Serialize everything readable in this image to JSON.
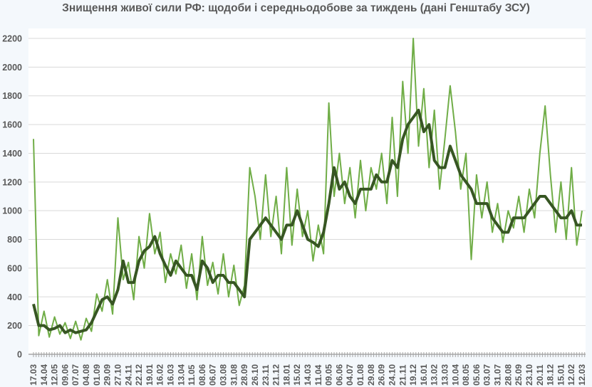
{
  "chart_data": {
    "type": "line",
    "title": "Знищення живої сили РФ: щодоби і середньодобове за тиждень (дані Генштабу ЗСУ)",
    "xlabel": "",
    "ylabel": "",
    "ylim": [
      0,
      2200
    ],
    "yticks": [
      0,
      200,
      400,
      600,
      800,
      1000,
      1200,
      1400,
      1600,
      1800,
      2000,
      2200
    ],
    "grid": true,
    "legend": "none",
    "x_tick_labels": [
      "17.03",
      "14.04",
      "12.05",
      "09.06",
      "07.07",
      "04.08",
      "01.09",
      "29.09",
      "27.10",
      "24.11",
      "22.12",
      "19.01",
      "16.02",
      "16.03",
      "13.04",
      "11.05",
      "08.06",
      "06.07",
      "03.08",
      "31.08",
      "28.09",
      "26.10",
      "23.11",
      "21.12",
      "18.01",
      "15.02",
      "14.03",
      "11.04",
      "09.05",
      "06.06",
      "04.07",
      "01.08",
      "29.08",
      "26.09",
      "24.10",
      "21.11",
      "19.12",
      "16.01",
      "13.02",
      "13.03",
      "10.04",
      "08.05",
      "05.06",
      "03.07",
      "31.07",
      "28.08",
      "25.09",
      "23.10",
      "20.11",
      "18.12",
      "15.01",
      "12.02",
      "12.03"
    ],
    "sampling": "values at each x tick and midway between ticks",
    "series": [
      {
        "key": "daily",
        "color": "#70ad47",
        "values": [
          1500,
          130,
          300,
          120,
          260,
          140,
          220,
          110,
          230,
          100,
          250,
          160,
          420,
          300,
          520,
          280,
          950,
          520,
          640,
          380,
          820,
          600,
          980,
          700,
          850,
          500,
          700,
          560,
          760,
          460,
          700,
          380,
          820,
          480,
          640,
          420,
          700,
          400,
          620,
          340,
          480,
          1300,
          1100,
          800,
          1250,
          820,
          1100,
          700,
          1300,
          760,
          1150,
          820,
          1000,
          650,
          900,
          700,
          1750,
          1100,
          1400,
          1050,
          1300,
          950,
          1350,
          1000,
          1300,
          1150,
          1400,
          1050,
          1650,
          1100,
          1900,
          1400,
          2200,
          1450,
          1850,
          1300,
          1700,
          1150,
          1500,
          1870,
          1550,
          1150,
          1400,
          660,
          1250,
          950,
          1200,
          850,
          1050,
          780,
          1000,
          880,
          1100,
          850,
          1150,
          950,
          1400,
          1730,
          1250,
          850,
          1200,
          800,
          1300,
          760,
          1000
        ]
      },
      {
        "key": "weekly_average",
        "color": "#375623",
        "values": [
          350,
          200,
          200,
          170,
          180,
          200,
          150,
          170,
          150,
          160,
          170,
          220,
          300,
          380,
          400,
          350,
          450,
          650,
          500,
          500,
          650,
          720,
          750,
          820,
          700,
          620,
          550,
          650,
          600,
          550,
          550,
          450,
          650,
          600,
          500,
          550,
          550,
          500,
          500,
          450,
          400,
          800,
          850,
          900,
          950,
          900,
          850,
          800,
          900,
          900,
          1000,
          900,
          800,
          780,
          750,
          850,
          1050,
          1300,
          1150,
          1200,
          1100,
          1050,
          1150,
          1150,
          1150,
          1250,
          1200,
          1200,
          1350,
          1300,
          1500,
          1600,
          1650,
          1700,
          1550,
          1600,
          1350,
          1300,
          1300,
          1450,
          1350,
          1250,
          1200,
          1150,
          1050,
          1050,
          1050,
          950,
          900,
          850,
          850,
          950,
          950,
          950,
          1000,
          1050,
          1100,
          1100,
          1050,
          1000,
          950,
          950,
          1000,
          900,
          900
        ]
      }
    ],
    "colors": {
      "grid": "#d9d9d9",
      "axis": "#a6a6a6",
      "text": "#595959"
    }
  }
}
